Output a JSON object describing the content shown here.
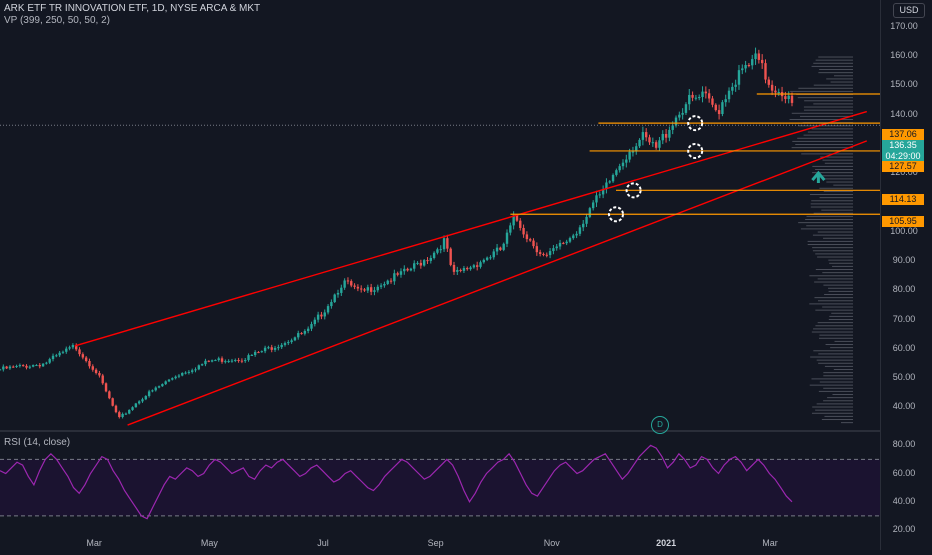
{
  "header": {
    "title": "ARK ETF TR INNOVATION ETF, 1D, NYSE ARCA & MKT",
    "indicator": "VP (399, 250, 50, 50, 2)",
    "currency": "USD"
  },
  "rsi_panel": {
    "label": "RSI (14, close)"
  },
  "event_badge": "D",
  "price_tags": {
    "level_137": "137.06",
    "last_price": "136.35",
    "countdown": "04:29:00",
    "level_127": "127.57",
    "level_114": "114.13",
    "level_106": "105.95"
  },
  "colors": {
    "background": "#131722",
    "up": "#26a69a",
    "down": "#ef5350",
    "channel": "#ff0000",
    "levels": "#ff9800",
    "rsi_line": "#9c27b0",
    "volume_profile": "#787b86"
  },
  "chart_data": [
    {
      "type": "candlestick",
      "title": "ARK ETF TR INNOVATION ETF, 1D, NYSE ARCA & MKT",
      "ylim": [
        33,
        175
      ],
      "y_ticks": [
        "170.00",
        "160.00",
        "150.00",
        "140.00",
        "130.00",
        "120.00",
        "110.00",
        "100.00",
        "90.00",
        "80.00",
        "70.00",
        "60.00",
        "50.00",
        "40.00"
      ],
      "x_ticks": [
        "Mar",
        "May",
        "Jul",
        "Sep",
        "Nov",
        "2021",
        "Mar"
      ],
      "x_tick_bold": [
        false,
        false,
        false,
        false,
        false,
        true,
        false
      ],
      "close_path": [
        {
          "x": 0,
          "p": 53
        },
        {
          "x": 0.05,
          "p": 55
        },
        {
          "x": 0.085,
          "p": 61
        },
        {
          "x": 0.11,
          "p": 52
        },
        {
          "x": 0.135,
          "p": 36
        },
        {
          "x": 0.16,
          "p": 43
        },
        {
          "x": 0.2,
          "p": 51
        },
        {
          "x": 0.24,
          "p": 56
        },
        {
          "x": 0.28,
          "p": 57
        },
        {
          "x": 0.32,
          "p": 62
        },
        {
          "x": 0.35,
          "p": 66
        },
        {
          "x": 0.37,
          "p": 74
        },
        {
          "x": 0.39,
          "p": 83
        },
        {
          "x": 0.41,
          "p": 79
        },
        {
          "x": 0.43,
          "p": 82
        },
        {
          "x": 0.46,
          "p": 86
        },
        {
          "x": 0.49,
          "p": 92
        },
        {
          "x": 0.505,
          "p": 97
        },
        {
          "x": 0.515,
          "p": 85
        },
        {
          "x": 0.54,
          "p": 89
        },
        {
          "x": 0.57,
          "p": 94
        },
        {
          "x": 0.585,
          "p": 105
        },
        {
          "x": 0.6,
          "p": 98
        },
        {
          "x": 0.62,
          "p": 91
        },
        {
          "x": 0.64,
          "p": 96
        },
        {
          "x": 0.655,
          "p": 100
        },
        {
          "x": 0.67,
          "p": 108
        },
        {
          "x": 0.685,
          "p": 113
        },
        {
          "x": 0.7,
          "p": 121
        },
        {
          "x": 0.715,
          "p": 128
        },
        {
          "x": 0.73,
          "p": 132
        },
        {
          "x": 0.745,
          "p": 128
        },
        {
          "x": 0.765,
          "p": 138
        },
        {
          "x": 0.78,
          "p": 144
        },
        {
          "x": 0.8,
          "p": 146
        },
        {
          "x": 0.815,
          "p": 141
        },
        {
          "x": 0.83,
          "p": 150
        },
        {
          "x": 0.845,
          "p": 155
        },
        {
          "x": 0.86,
          "p": 159
        },
        {
          "x": 0.875,
          "p": 150
        },
        {
          "x": 0.89,
          "p": 148
        },
        {
          "x": 0.9,
          "p": 143
        }
      ],
      "horizontal_levels": [
        {
          "value": 147,
          "label": ""
        },
        {
          "value": 137.06,
          "label": "137.06"
        },
        {
          "value": 127.57,
          "label": "127.57"
        },
        {
          "value": 114.13,
          "label": "114.13"
        },
        {
          "value": 105.95,
          "label": "105.95"
        }
      ],
      "last_price": 136.35,
      "channel_lines": [
        {
          "from": {
            "x": 0.085,
            "p": 61
          },
          "to": {
            "x": 0.985,
            "p": 141
          }
        },
        {
          "from": {
            "x": 0.145,
            "p": 34
          },
          "to": {
            "x": 0.985,
            "p": 131
          }
        }
      ],
      "marked_points": [
        {
          "x": 0.7,
          "p": 105.95
        },
        {
          "x": 0.72,
          "p": 114.13
        },
        {
          "x": 0.79,
          "p": 127.57
        },
        {
          "x": 0.79,
          "p": 137.06
        }
      ],
      "arrow": {
        "x": 0.93,
        "p": 119,
        "direction": "up"
      },
      "volume_profile_bins": 250
    },
    {
      "type": "line",
      "title": "RSI (14, close)",
      "ylim": [
        20,
        88
      ],
      "y_ticks": [
        "80.00",
        "60.00",
        "40.00",
        "20.00"
      ],
      "bands": [
        70,
        30
      ],
      "values": [
        62,
        60,
        64,
        68,
        66,
        58,
        52,
        62,
        70,
        74,
        70,
        64,
        58,
        50,
        46,
        52,
        60,
        66,
        72,
        70,
        62,
        56,
        48,
        42,
        36,
        30,
        28,
        36,
        44,
        52,
        58,
        56,
        60,
        64,
        62,
        58,
        60,
        66,
        70,
        68,
        64,
        60,
        62,
        64,
        58,
        56,
        62,
        66,
        64,
        68,
        70,
        66,
        62,
        58,
        60,
        64,
        66,
        62,
        58,
        54,
        56,
        60,
        62,
        58,
        54,
        50,
        48,
        52,
        58,
        62,
        66,
        70,
        68,
        64,
        60,
        56,
        58,
        62,
        66,
        70,
        66,
        58,
        48,
        40,
        46,
        54,
        60,
        64,
        68,
        70,
        74,
        68,
        60,
        52,
        46,
        44,
        50,
        56,
        62,
        66,
        68,
        64,
        60,
        62,
        66,
        70,
        72,
        74,
        68,
        62,
        56,
        60,
        66,
        72,
        76,
        80,
        78,
        72,
        64,
        68,
        74,
        70,
        64,
        66,
        72,
        70,
        64,
        60,
        66,
        70,
        72,
        68,
        62,
        66,
        70,
        66,
        60,
        56,
        50,
        44,
        40
      ]
    }
  ]
}
